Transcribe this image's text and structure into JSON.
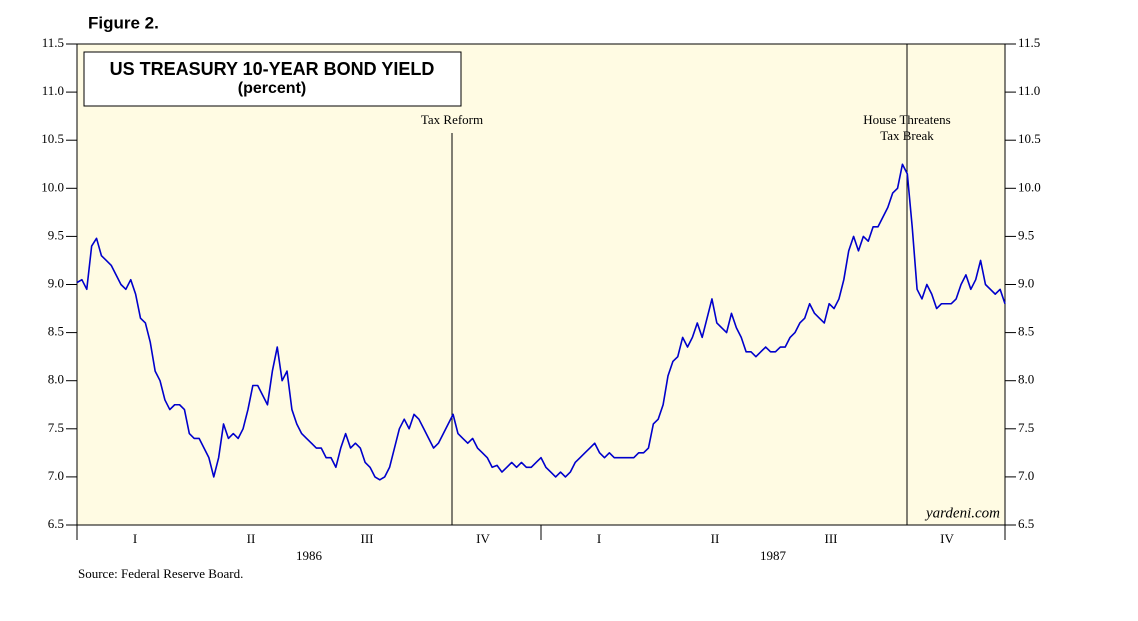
{
  "chart_data": {
    "type": "line",
    "figure_label": "Figure 2.",
    "title": "US TREASURY 10-YEAR BOND YIELD",
    "subtitle": "(percent)",
    "source": "Source: Federal Reserve Board.",
    "watermark": "yardeni.com",
    "annotations": [
      "Tax Reform",
      "House Threatens\nTax Break"
    ],
    "quarters": [
      "I",
      "II",
      "III",
      "IV",
      "I",
      "II",
      "III",
      "IV"
    ],
    "years": [
      "1986",
      "1987"
    ],
    "series": [
      {
        "color": "#0000cc",
        "values": [
          9.02,
          9.05,
          8.95,
          9.4,
          9.48,
          9.3,
          9.25,
          9.2,
          9.1,
          9.0,
          8.95,
          9.05,
          8.9,
          8.65,
          8.6,
          8.4,
          8.1,
          8.0,
          7.8,
          7.7,
          7.75,
          7.75,
          7.7,
          7.45,
          7.4,
          7.4,
          7.3,
          7.2,
          7.0,
          7.2,
          7.55,
          7.4,
          7.45,
          7.4,
          7.5,
          7.7,
          7.95,
          7.95,
          7.85,
          7.75,
          8.1,
          8.35,
          8.0,
          8.1,
          7.7,
          7.55,
          7.45,
          7.4,
          7.35,
          7.3,
          7.3,
          7.2,
          7.2,
          7.1,
          7.3,
          7.45,
          7.3,
          7.35,
          7.3,
          7.15,
          7.1,
          7.0,
          6.97,
          7.0,
          7.1,
          7.3,
          7.5,
          7.6,
          7.5,
          7.65,
          7.6,
          7.5,
          7.4,
          7.3,
          7.35,
          7.45,
          7.55,
          7.65,
          7.45,
          7.4,
          7.35,
          7.4,
          7.3,
          7.25,
          7.2,
          7.1,
          7.12,
          7.05,
          7.1,
          7.15,
          7.1,
          7.15,
          7.1,
          7.1,
          7.15,
          7.2,
          7.1,
          7.05,
          7.0,
          7.05,
          7.0,
          7.05,
          7.15,
          7.2,
          7.25,
          7.3,
          7.35,
          7.25,
          7.2,
          7.25,
          7.2,
          7.2,
          7.2,
          7.2,
          7.2,
          7.25,
          7.25,
          7.3,
          7.55,
          7.6,
          7.75,
          8.05,
          8.2,
          8.25,
          8.45,
          8.35,
          8.45,
          8.6,
          8.45,
          8.65,
          8.85,
          8.6,
          8.55,
          8.5,
          8.7,
          8.55,
          8.45,
          8.3,
          8.3,
          8.25,
          8.3,
          8.35,
          8.3,
          8.3,
          8.35,
          8.35,
          8.45,
          8.5,
          8.6,
          8.65,
          8.8,
          8.7,
          8.65,
          8.6,
          8.8,
          8.75,
          8.85,
          9.05,
          9.35,
          9.5,
          9.35,
          9.5,
          9.45,
          9.6,
          9.6,
          9.7,
          9.8,
          9.95,
          10.0,
          10.25,
          10.15,
          9.6,
          8.95,
          8.85,
          9.0,
          8.9,
          8.75,
          8.8,
          8.8,
          8.8,
          8.85,
          9.0,
          9.1,
          8.95,
          9.05,
          9.25,
          9.0,
          8.95,
          8.9,
          8.95,
          8.8
        ]
      }
    ],
    "ylim": [
      6.5,
      11.5
    ],
    "yticks": [
      6.5,
      {
        "value": 7,
        "label": "7.0"
      },
      7.5,
      {
        "value": 8,
        "label": "8.0"
      },
      8.5,
      {
        "value": 9,
        "label": "9.0"
      },
      9.5,
      {
        "value": 10,
        "label": "10.0"
      },
      10.5,
      {
        "value": 11,
        "label": "11.0"
      },
      11.5
    ],
    "plot_background": "#fffbe3"
  }
}
